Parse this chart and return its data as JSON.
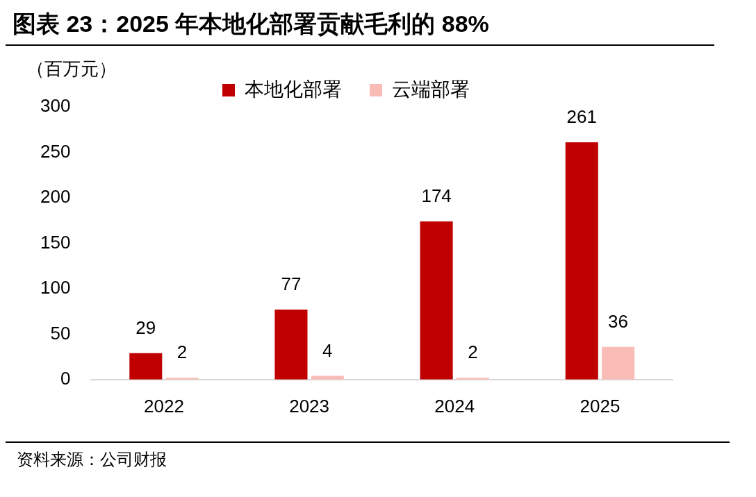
{
  "chart_data": {
    "type": "bar",
    "title": "图表 23：2025 年本地化部署贡献毛利的 88%",
    "ylabel": "（百万元）",
    "categories": [
      "2022",
      "2023",
      "2024",
      "2025"
    ],
    "series": [
      {
        "name": "本地化部署",
        "color": "#c00000",
        "values": [
          29,
          77,
          174,
          261
        ]
      },
      {
        "name": "云端部署",
        "color": "#f9bcb6",
        "values": [
          2,
          4,
          2,
          36
        ]
      }
    ],
    "ylim": [
      0,
      300
    ],
    "yticks": [
      0,
      50,
      100,
      150,
      200,
      250,
      300
    ],
    "grid": false,
    "legend": "top",
    "data_labels": true,
    "annotations": [
      "资料来源：公司财报"
    ]
  }
}
